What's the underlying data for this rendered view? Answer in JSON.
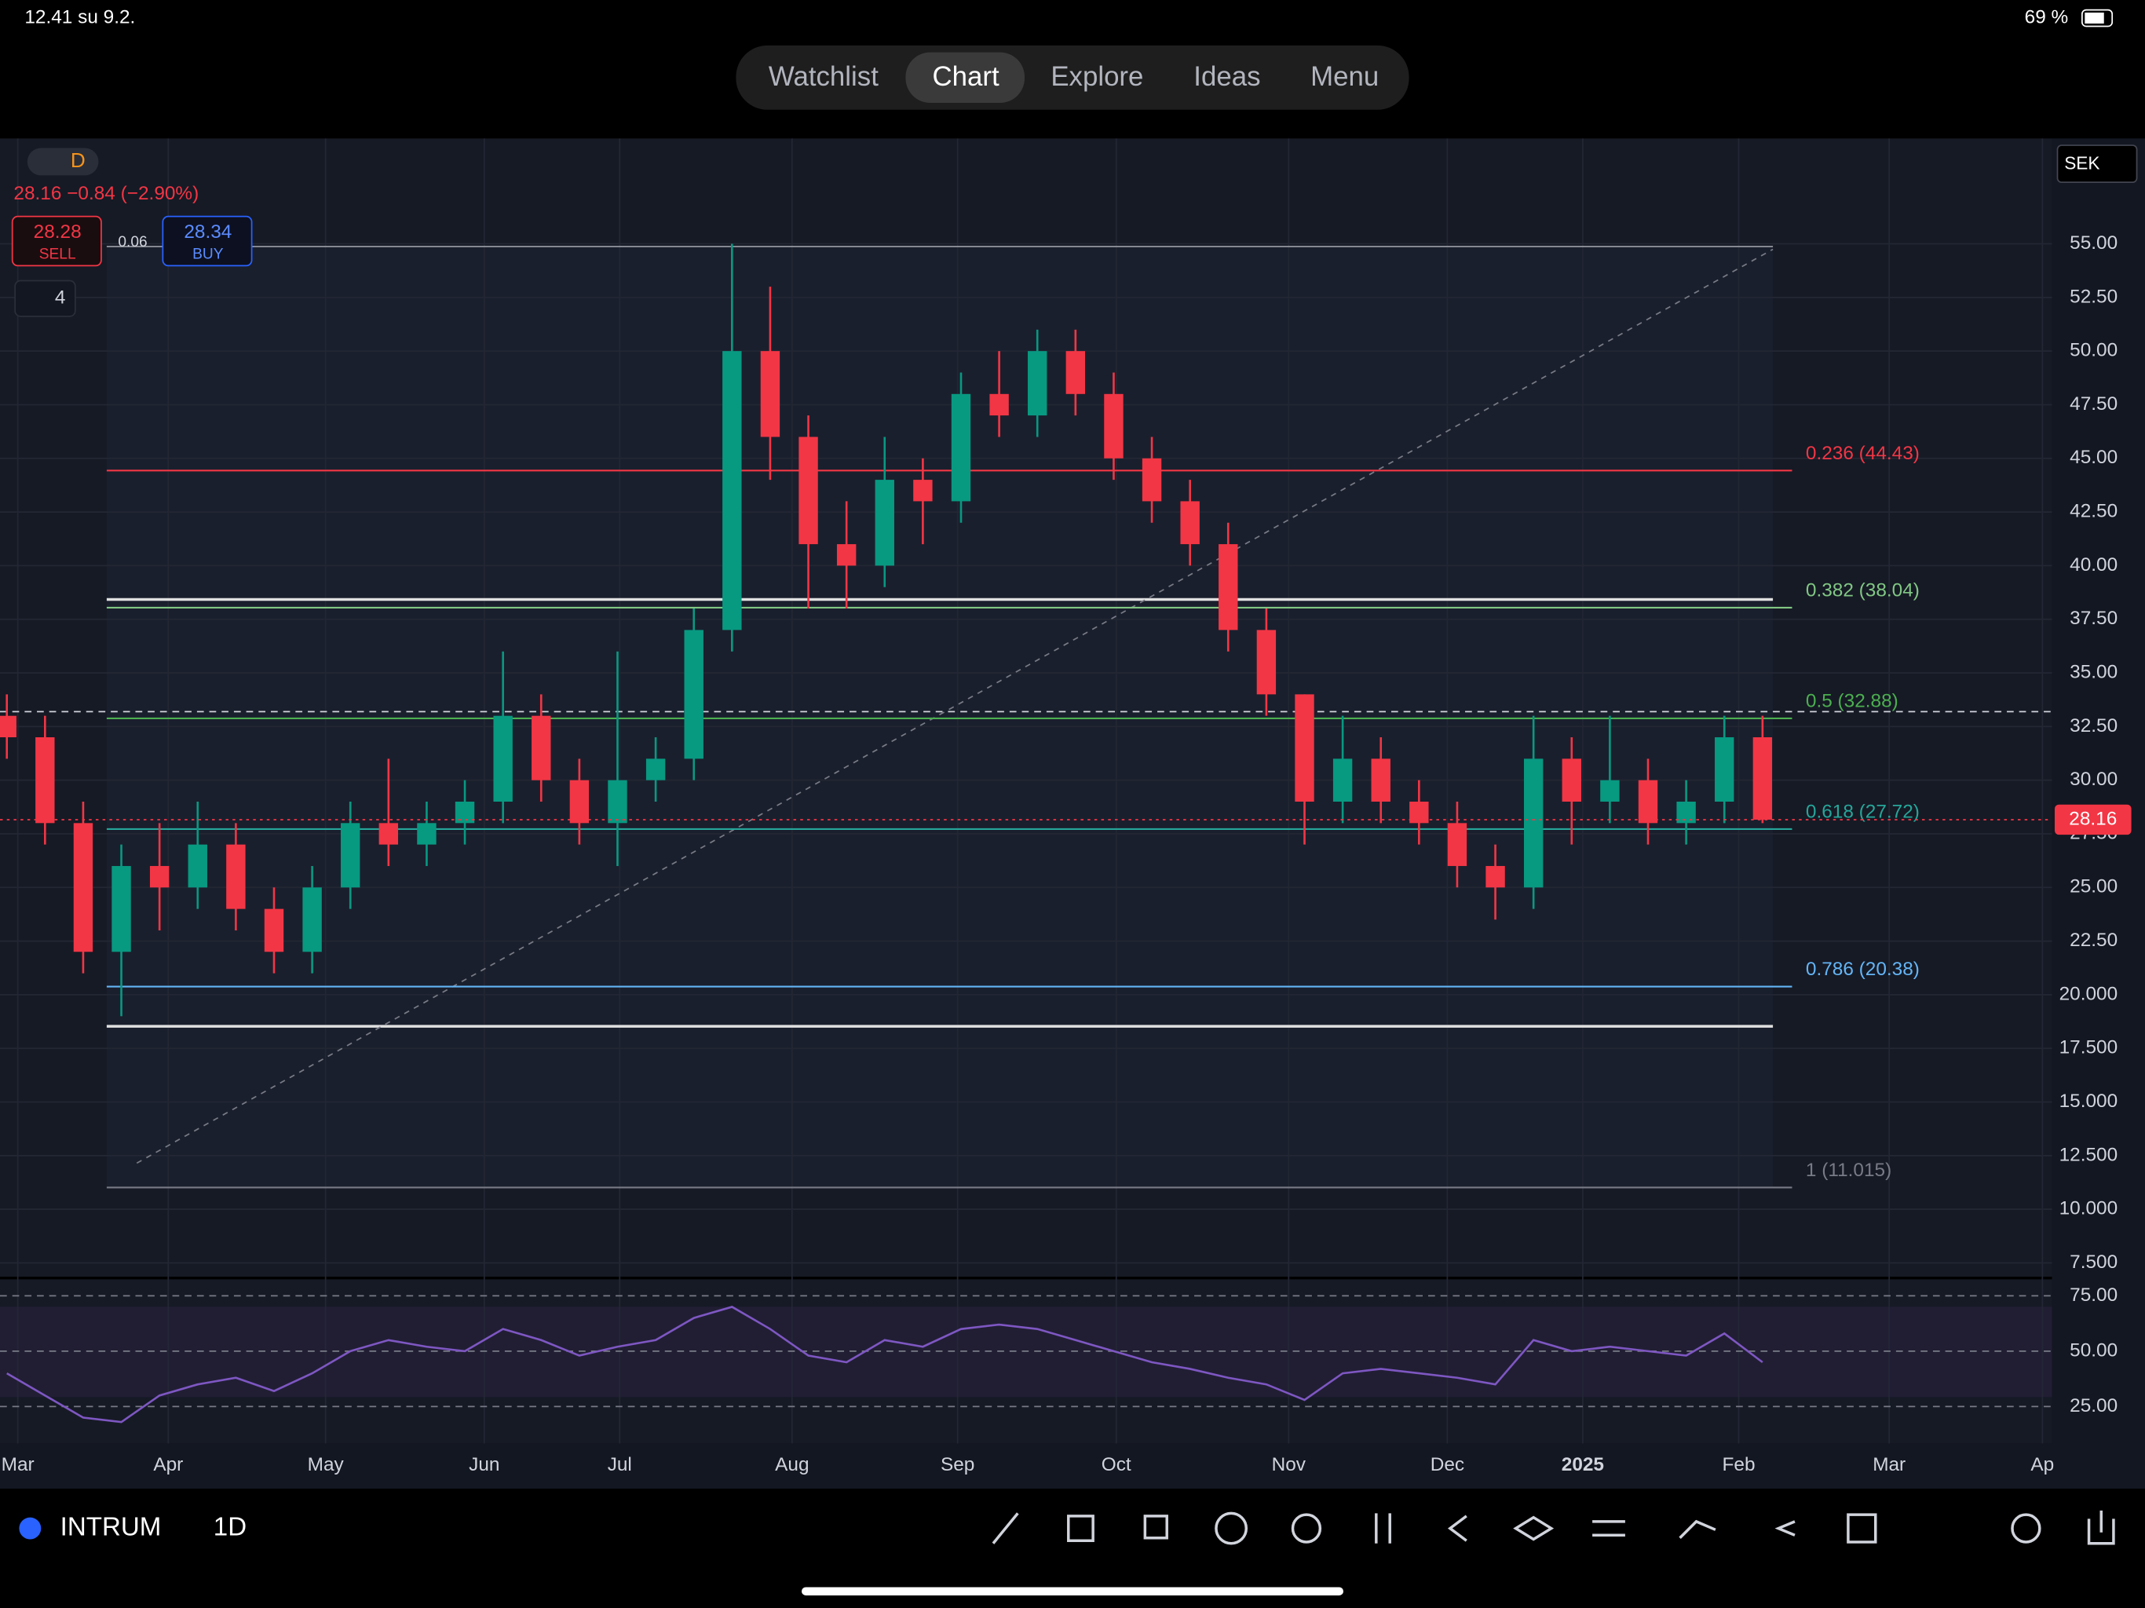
{
  "status_bar": {
    "time": "12.41 su 9.2.",
    "battery": "69 %"
  },
  "nav_tabs": [
    "Watchlist",
    "Chart",
    "Explore",
    "Ideas",
    "Menu"
  ],
  "symbol_info": {
    "interval_badge": "D",
    "change": "28.16 −0.84 (−2.90%)",
    "sell_price": "28.28",
    "sell": "SELL",
    "spread": "0.06",
    "buy_price": "28.34",
    "buy": "BUY",
    "indicators_count": "4",
    "currency": "SEK"
  },
  "chart_data": {
    "type": "candlestick",
    "categories": [
      null,
      null,
      null,
      null,
      null,
      null,
      null,
      null,
      null,
      null,
      null,
      null,
      null,
      null,
      null,
      null,
      null,
      null,
      null,
      null,
      null,
      null,
      null,
      null,
      null,
      null,
      null,
      null,
      null,
      null,
      null,
      null,
      null,
      null,
      null,
      null,
      null,
      null,
      null,
      null,
      null,
      null,
      null,
      null,
      null,
      null,
      null
    ],
    "open": [
      33,
      32,
      28,
      22,
      26,
      25,
      27,
      24,
      22,
      25,
      28,
      27,
      28,
      29,
      33,
      30,
      28,
      30,
      31,
      37,
      50,
      46,
      41,
      40,
      44,
      43,
      48,
      47,
      50,
      48,
      45,
      43,
      41,
      37,
      34,
      29,
      31,
      29,
      28,
      26,
      25,
      31,
      29,
      30,
      28,
      29,
      32
    ],
    "high": [
      34,
      33,
      29,
      27,
      28,
      29,
      28,
      25,
      26,
      29,
      31,
      29,
      30,
      36,
      34,
      31,
      36,
      32,
      38,
      55,
      53,
      47,
      43,
      46,
      45,
      49,
      50,
      51,
      51,
      49,
      46,
      44,
      42,
      38,
      34,
      33,
      32,
      30,
      29,
      27,
      33,
      32,
      33,
      31,
      30,
      33,
      33
    ],
    "low": [
      31,
      27,
      21,
      19,
      23,
      24,
      23,
      21,
      21,
      24,
      26,
      26,
      27,
      28,
      29,
      27,
      26,
      29,
      30,
      36,
      44,
      38,
      38,
      39,
      41,
      42,
      46,
      46,
      47,
      44,
      42,
      40,
      36,
      33,
      27,
      28,
      28,
      27,
      25,
      23.5,
      24,
      27,
      28,
      27,
      27,
      28,
      28
    ],
    "close": [
      32,
      28,
      22,
      26,
      25,
      27,
      24,
      22,
      25,
      28,
      27,
      28,
      29,
      33,
      30,
      28,
      30,
      31,
      37,
      50,
      46,
      41,
      40,
      44,
      43,
      48,
      47,
      50,
      48,
      45,
      43,
      41,
      37,
      34,
      29,
      31,
      29,
      28,
      26,
      25,
      31,
      29,
      30,
      28,
      29,
      32,
      28.16
    ],
    "up_color": "#089981",
    "down_color": "#f23645",
    "ylim": [
      6.86,
      59.91
    ],
    "yticks": [
      {
        "value": 55,
        "label": "55.00"
      },
      {
        "value": 52.5,
        "label": "52.50"
      },
      {
        "value": 50,
        "label": "50.00"
      },
      {
        "value": 47.5,
        "label": "47.50"
      },
      {
        "value": 45,
        "label": "45.00"
      },
      {
        "value": 42.5,
        "label": "42.50"
      },
      {
        "value": 40,
        "label": "40.00"
      },
      {
        "value": 37.5,
        "label": "37.50"
      },
      {
        "value": 35,
        "label": "35.00"
      },
      {
        "value": 32.5,
        "label": "32.50"
      },
      {
        "value": 30,
        "label": "30.00"
      },
      {
        "value": 27.5,
        "label": "27.50"
      },
      {
        "value": 25,
        "label": "25.00"
      },
      {
        "value": 22.5,
        "label": "22.50"
      },
      {
        "value": 20,
        "label": "20.000"
      },
      {
        "value": 17.5,
        "label": "17.500"
      },
      {
        "value": 15,
        "label": "15.000"
      },
      {
        "value": 12.5,
        "label": "12.500"
      },
      {
        "value": 10,
        "label": "10.000"
      },
      {
        "value": 7.5,
        "label": "7.500"
      }
    ],
    "grid": true,
    "x_labels": [
      "Mar",
      "Apr",
      "May",
      "Jun",
      "Jul",
      "Aug",
      "Sep",
      "Oct",
      "Nov",
      "Dec",
      "2025",
      "Feb",
      "Mar",
      "Ap"
    ],
    "fib_levels": [
      {
        "value": 44.43,
        "label": "0.236 (44.43)",
        "color": "#f23645"
      },
      {
        "value": 38.04,
        "label": "0.382 (38.04)",
        "color": "#81c784"
      },
      {
        "value": 32.88,
        "label": "0.5 (32.88)",
        "color": "#4caf50"
      },
      {
        "value": 27.72,
        "label": "0.618 (27.72)",
        "color": "#26a69a"
      },
      {
        "value": 20.38,
        "label": "0.786 (20.38)",
        "color": "#64b5f6"
      },
      {
        "value": 11.015,
        "label": "1 (11.015)",
        "color": "#787b86"
      }
    ],
    "last_price": 28.16,
    "rsi": {
      "values": [
        40,
        30,
        20,
        18,
        30,
        35,
        38,
        32,
        40,
        50,
        55,
        52,
        50,
        60,
        55,
        48,
        52,
        55,
        65,
        70,
        60,
        48,
        45,
        55,
        52,
        60,
        62,
        60,
        55,
        50,
        45,
        42,
        38,
        35,
        28,
        40,
        42,
        40,
        38,
        35,
        55,
        50,
        52,
        50,
        48,
        58,
        45
      ],
      "color": "#7e57c2",
      "ylim": [
        8.3,
        82.4
      ],
      "yticks": [
        {
          "value": 75,
          "label": "75.00"
        },
        {
          "value": 50,
          "label": "50.00"
        },
        {
          "value": 25,
          "label": "25.00"
        }
      ]
    }
  },
  "toolbar": {
    "symbol": "INTRUM",
    "interval": "1D"
  }
}
